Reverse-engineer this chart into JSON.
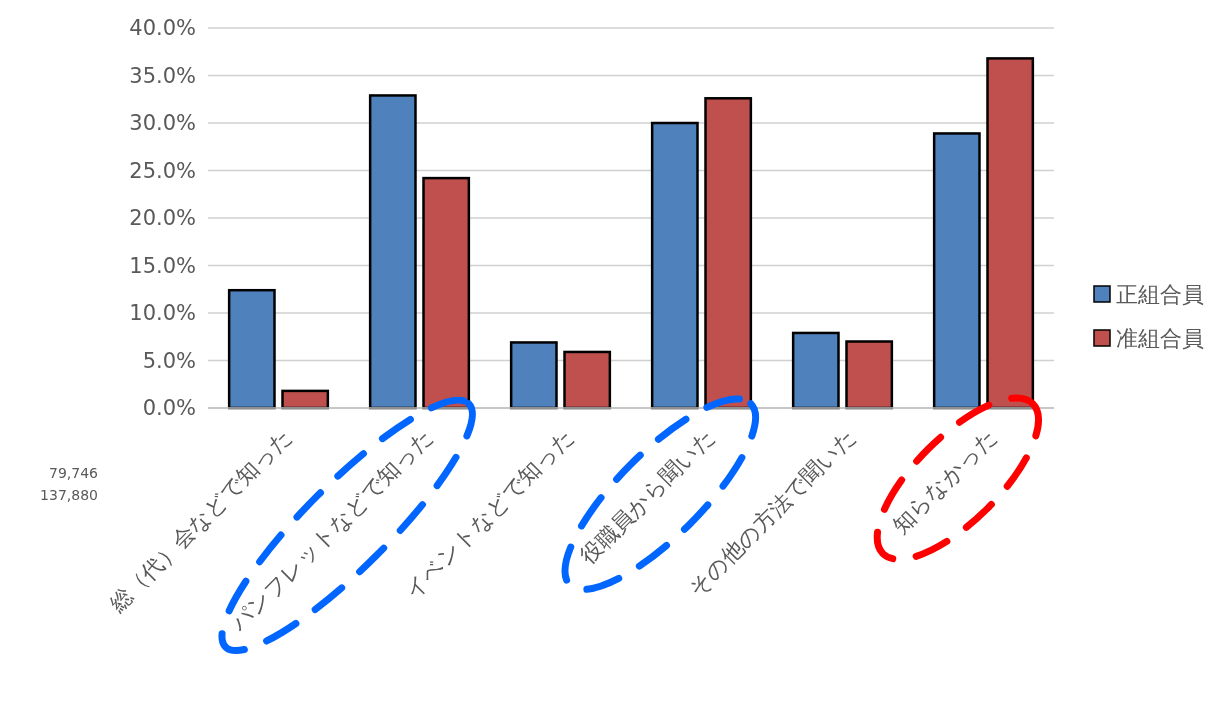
{
  "chart_data": {
    "type": "bar",
    "categories": [
      "総（代）会などで知った",
      "パンフレットなどで知った",
      "イベントなどで知った",
      "役職員から聞いた",
      "その他の方法で聞いた",
      "知らなかった"
    ],
    "series": [
      {
        "name": "正組合員",
        "color": "#4f81bd",
        "values": [
          12.4,
          32.9,
          6.9,
          30.0,
          7.9,
          28.9
        ]
      },
      {
        "name": "准組合員",
        "color": "#c0504d",
        "values": [
          1.8,
          24.2,
          5.9,
          32.6,
          7.0,
          36.8
        ]
      }
    ],
    "ylim": [
      0,
      40
    ],
    "yticks": [
      {
        "value": 0,
        "label": "0.0%"
      },
      {
        "value": 5,
        "label": "5.0%"
      },
      {
        "value": 10,
        "label": "10.0%"
      },
      {
        "value": 15,
        "label": "15.0%"
      },
      {
        "value": 20,
        "label": "20.0%"
      },
      {
        "value": 25,
        "label": "25.0%"
      },
      {
        "value": 30,
        "label": "30.0%"
      },
      {
        "value": 35,
        "label": "35.0%"
      },
      {
        "value": 40,
        "label": "40.0%"
      }
    ],
    "grid": "y",
    "legend": "right",
    "annotations": [
      "79,746",
      "137,880"
    ]
  }
}
